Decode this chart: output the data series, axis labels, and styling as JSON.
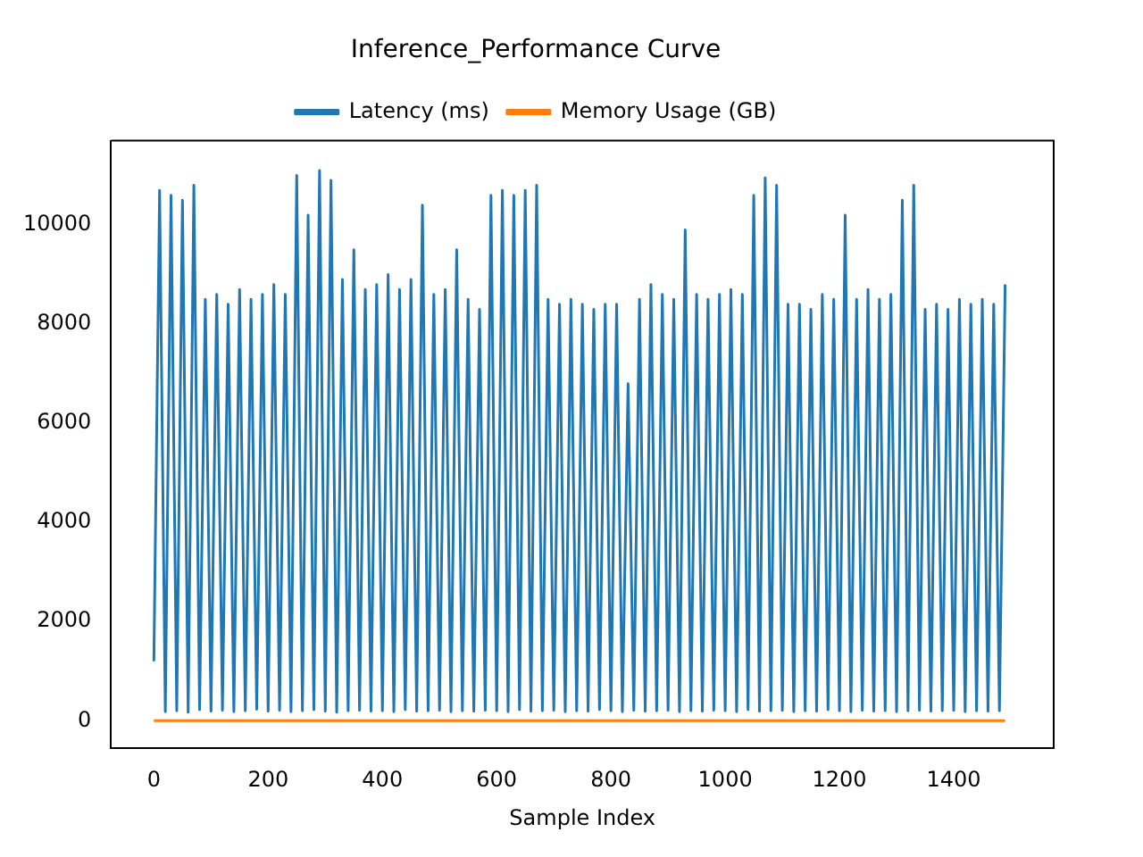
{
  "chart_data": {
    "type": "line",
    "title": "Inference_Performance Curve",
    "xlabel": "Sample Index",
    "xlim": [
      -75,
      1575
    ],
    "xticks": [
      0,
      200,
      400,
      600,
      800,
      1000,
      1200,
      1400
    ],
    "ylim": [
      -560,
      11700
    ],
    "yticks": [
      0,
      2000,
      4000,
      6000,
      8000,
      10000
    ],
    "grid": false,
    "legend": "top",
    "series": [
      {
        "name": "Latency (ms)",
        "color": "#1f77b4",
        "x": [
          0,
          10,
          20,
          30,
          40,
          50,
          60,
          70,
          80,
          90,
          100,
          110,
          120,
          130,
          140,
          150,
          160,
          170,
          180,
          190,
          200,
          210,
          220,
          230,
          240,
          250,
          260,
          270,
          280,
          290,
          300,
          310,
          320,
          330,
          340,
          350,
          360,
          370,
          380,
          390,
          400,
          410,
          420,
          430,
          440,
          450,
          460,
          470,
          480,
          490,
          500,
          510,
          520,
          530,
          540,
          550,
          560,
          570,
          580,
          590,
          600,
          610,
          620,
          630,
          640,
          650,
          660,
          670,
          680,
          690,
          700,
          710,
          720,
          730,
          740,
          750,
          760,
          770,
          780,
          790,
          800,
          810,
          820,
          830,
          840,
          850,
          860,
          870,
          880,
          890,
          900,
          910,
          920,
          930,
          940,
          950,
          960,
          970,
          980,
          990,
          1000,
          1010,
          1020,
          1030,
          1040,
          1050,
          1060,
          1070,
          1080,
          1090,
          1100,
          1110,
          1120,
          1130,
          1140,
          1150,
          1160,
          1170,
          1180,
          1190,
          1200,
          1210,
          1220,
          1230,
          1240,
          1250,
          1260,
          1270,
          1280,
          1290,
          1300,
          1310,
          1320,
          1330,
          1340,
          1350,
          1360,
          1370,
          1380,
          1390,
          1400,
          1410,
          1420,
          1430,
          1440,
          1450,
          1460,
          1470,
          1480,
          1490
        ],
        "values": [
          1200,
          10700,
          180,
          10600,
          200,
          10500,
          170,
          10800,
          220,
          8500,
          190,
          8600,
          210,
          8400,
          180,
          8700,
          200,
          8500,
          230,
          8600,
          190,
          8800,
          210,
          8600,
          180,
          11000,
          200,
          10200,
          220,
          11100,
          190,
          10900,
          170,
          8900,
          200,
          9500,
          210,
          8700,
          190,
          8800,
          200,
          9000,
          180,
          8700,
          220,
          8900,
          190,
          10400,
          200,
          8600,
          210,
          8700,
          180,
          9500,
          200,
          8500,
          190,
          8300,
          210,
          10600,
          200,
          10700,
          180,
          10600,
          220,
          10700,
          190,
          10800,
          200,
          8500,
          210,
          8400,
          180,
          8500,
          200,
          8400,
          190,
          8300,
          220,
          8400,
          200,
          8400,
          180,
          6800,
          210,
          8500,
          190,
          8800,
          200,
          8600,
          210,
          8500,
          180,
          9900,
          200,
          8600,
          190,
          8500,
          210,
          8600,
          200,
          8700,
          180,
          8600,
          220,
          10600,
          190,
          10950,
          200,
          10800,
          210,
          8400,
          180,
          8400,
          200,
          8300,
          190,
          8600,
          220,
          8500,
          200,
          10200,
          180,
          8500,
          210,
          8700,
          190,
          8500,
          200,
          8600,
          180,
          10500,
          200,
          10800,
          210,
          8300,
          190,
          8400,
          200,
          8300,
          210,
          8500,
          180,
          8400,
          200,
          8500,
          190,
          8400,
          200,
          8800
        ]
      },
      {
        "name": "Memory Usage (GB)",
        "color": "#ff7f0e",
        "x": [
          0,
          1490
        ],
        "values": [
          0,
          0
        ]
      }
    ]
  }
}
